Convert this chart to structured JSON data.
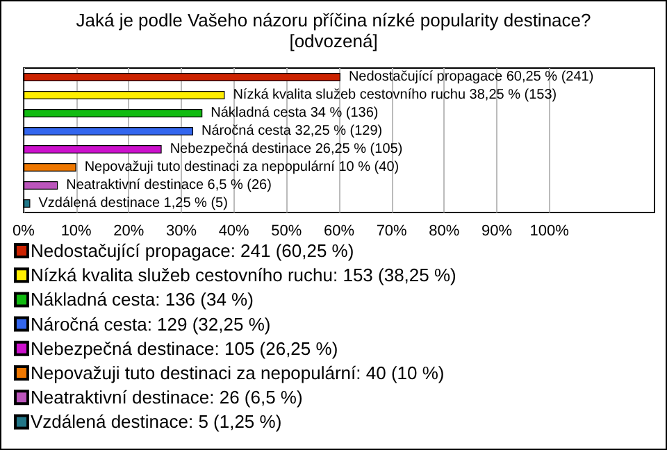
{
  "chart_data": {
    "type": "bar",
    "orientation": "horizontal",
    "stacked": true,
    "title": "Jaká je podle Vašeho názoru příčina nízké popularity destinace?",
    "subtitle": "[odvozená]",
    "categories": [
      null,
      null,
      null,
      null,
      null,
      null,
      null,
      null
    ],
    "series": [
      {
        "name": "Nedostačující propagace: 241 (60,25 %)",
        "color": "#cc2200",
        "values": [
          60.25,
          null,
          null,
          null,
          null,
          null,
          null,
          null
        ],
        "value_labels": [
          "Nedostačující propagace 60,25 % (241)",
          null,
          null,
          null,
          null,
          null,
          null,
          null
        ]
      },
      {
        "name": "Nízká kvalita služeb cestovního ruchu: 153 (38,25 %)",
        "color": "#ffee00",
        "values": [
          null,
          38.25,
          null,
          null,
          null,
          null,
          null,
          null
        ],
        "value_labels": [
          null,
          "Nízká kvalita služeb cestovního ruchu 38,25 % (153)",
          null,
          null,
          null,
          null,
          null,
          null
        ]
      },
      {
        "name": "Nákladná cesta: 136 (34 %)",
        "color": "#11bb11",
        "values": [
          null,
          null,
          34,
          null,
          null,
          null,
          null,
          null
        ],
        "value_labels": [
          null,
          null,
          "Nákladná cesta 34 % (136)",
          null,
          null,
          null,
          null,
          null
        ]
      },
      {
        "name": "Náročná cesta: 129 (32,25 %)",
        "color": "#3366ee",
        "values": [
          null,
          null,
          null,
          32.25,
          null,
          null,
          null,
          null
        ],
        "value_labels": [
          null,
          null,
          null,
          "Náročná cesta 32,25 % (129)",
          null,
          null,
          null,
          null
        ]
      },
      {
        "name": "Nebezpečná destinace: 105 (26,25 %)",
        "color": "#cc11cc",
        "values": [
          null,
          null,
          null,
          null,
          26.25,
          null,
          null,
          null
        ],
        "value_labels": [
          null,
          null,
          null,
          null,
          "Nebezpečná destinace 26,25 % (105)",
          null,
          null,
          null
        ]
      },
      {
        "name": "Nepovažuji tuto destinaci za nepopulární: 40 (10 %)",
        "color": "#ee7700",
        "values": [
          null,
          null,
          null,
          null,
          null,
          10,
          null,
          null
        ],
        "value_labels": [
          null,
          null,
          null,
          null,
          null,
          "Nepovažuji tuto destinaci za nepopulární 10 % (40)",
          null,
          null
        ]
      },
      {
        "name": "Neatraktivní destinace: 26 (6,5 %)",
        "color": "#bb55bb",
        "values": [
          null,
          null,
          null,
          null,
          null,
          null,
          6.5,
          null
        ],
        "value_labels": [
          null,
          null,
          null,
          null,
          null,
          null,
          "Neatraktivní destinace 6,5 % (26)",
          null
        ]
      },
      {
        "name": "Vzdálená destinace: 5 (1,25 %)",
        "color": "#227788",
        "values": [
          null,
          null,
          null,
          null,
          null,
          null,
          null,
          1.25
        ],
        "value_labels": [
          null,
          null,
          null,
          null,
          null,
          null,
          null,
          "Vzdálená destinace 1,25 % (5)"
        ]
      }
    ],
    "xlim": [
      0,
      120
    ],
    "xticks": [
      {
        "value": 0,
        "label": "0%"
      },
      {
        "value": 10,
        "label": "10%"
      },
      {
        "value": 20,
        "label": "20%"
      },
      {
        "value": 30,
        "label": "30%"
      },
      {
        "value": 40,
        "label": "40%"
      },
      {
        "value": 50,
        "label": "50%"
      },
      {
        "value": 60,
        "label": "60%"
      },
      {
        "value": 70,
        "label": "70%"
      },
      {
        "value": 80,
        "label": "80%"
      },
      {
        "value": 90,
        "label": "90%"
      },
      {
        "value": 100,
        "label": "100%"
      }
    ],
    "grid": "x",
    "legend": "bottom"
  }
}
